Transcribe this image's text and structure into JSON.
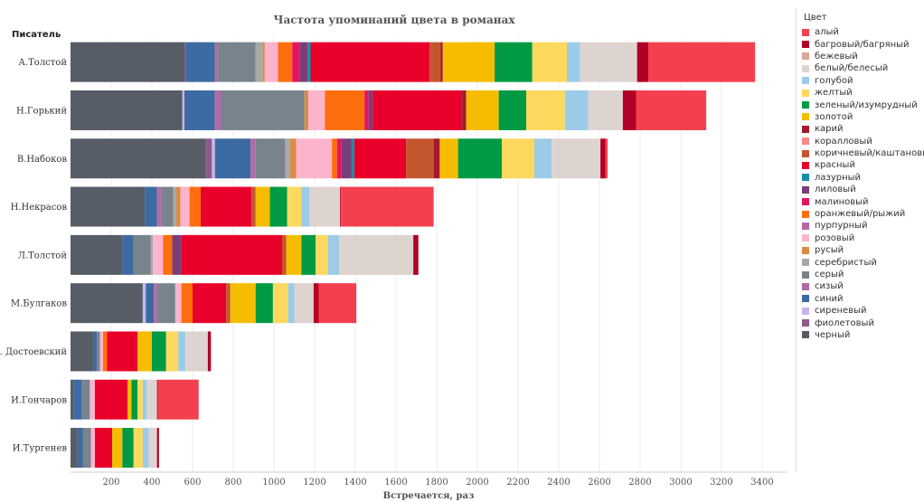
{
  "chart_data": {
    "type": "bar",
    "orientation": "horizontal",
    "stacked": true,
    "title": "Частота упоминаний цвета в романах",
    "row_header": "Писатель",
    "xlabel": "Встречается, раз",
    "xlim": [
      0,
      3520
    ],
    "xticks": [
      200,
      400,
      600,
      800,
      1000,
      1200,
      1400,
      1600,
      1800,
      2000,
      2200,
      2400,
      2600,
      2800,
      3000,
      3200,
      3400
    ],
    "legend_title": "Цвет",
    "legend_position": "right",
    "colors": [
      {
        "name": "алый",
        "color": "#f4404e"
      },
      {
        "name": "багровый/багряный",
        "color": "#b10026"
      },
      {
        "name": "бежевый",
        "color": "#d8a89a"
      },
      {
        "name": "белый/белесый",
        "color": "#ddd4d0"
      },
      {
        "name": "голубой",
        "color": "#9ccbe8"
      },
      {
        "name": "желтый",
        "color": "#fcd95e"
      },
      {
        "name": "зеленый/изумрудный",
        "color": "#009a44"
      },
      {
        "name": "золотой",
        "color": "#f6bd00"
      },
      {
        "name": "карий",
        "color": "#a4192e"
      },
      {
        "name": "коралловый",
        "color": "#f8898b"
      },
      {
        "name": "коричневый/каштановый",
        "color": "#c4562e"
      },
      {
        "name": "красный",
        "color": "#e8002b"
      },
      {
        "name": "лазурный",
        "color": "#148ea6"
      },
      {
        "name": "лиловый",
        "color": "#7b3d79"
      },
      {
        "name": "малиновый",
        "color": "#e4145e"
      },
      {
        "name": "оранжевый/рыжий",
        "color": "#fd6e0f"
      },
      {
        "name": "пурпурный",
        "color": "#b866a8"
      },
      {
        "name": "розовый",
        "color": "#fcb4cc"
      },
      {
        "name": "русый",
        "color": "#dc8a4a"
      },
      {
        "name": "серебристый",
        "color": "#a7aaa8"
      },
      {
        "name": "серый",
        "color": "#79838e"
      },
      {
        "name": "сизый",
        "color": "#b06ca6"
      },
      {
        "name": "синий",
        "color": "#3d6aa2"
      },
      {
        "name": "сиреневый",
        "color": "#c8b4ec"
      },
      {
        "name": "фиолетовый",
        "color": "#8c5a8c"
      },
      {
        "name": "черный",
        "color": "#575d66"
      }
    ],
    "rows": [
      {
        "writer": "А.Толстой",
        "segments": [
          {
            "color": "черный",
            "value": 560
          },
          {
            "color": "фиолетовый",
            "value": 5
          },
          {
            "color": "синий",
            "value": 145
          },
          {
            "color": "сизый",
            "value": 15
          },
          {
            "color": "серый",
            "value": 185
          },
          {
            "color": "серебристый",
            "value": 35
          },
          {
            "color": "русый",
            "value": 10
          },
          {
            "color": "розовый",
            "value": 65
          },
          {
            "color": "оранжевый/рыжий",
            "value": 70
          },
          {
            "color": "малиновый",
            "value": 35
          },
          {
            "color": "лиловый",
            "value": 40
          },
          {
            "color": "лазурный",
            "value": 15
          },
          {
            "color": "красный",
            "value": 585
          },
          {
            "color": "коричневый/каштановый",
            "value": 55
          },
          {
            "color": "карий",
            "value": 10
          },
          {
            "color": "золотой",
            "value": 255
          },
          {
            "color": "зеленый/изумрудный",
            "value": 185
          },
          {
            "color": "желтый",
            "value": 170
          },
          {
            "color": "голубой",
            "value": 65
          },
          {
            "color": "белый/белесый",
            "value": 280
          },
          {
            "color": "багровый/багряный",
            "value": 55
          },
          {
            "color": "алый",
            "value": 525
          }
        ]
      },
      {
        "writer": "Н.Горький",
        "segments": [
          {
            "color": "черный",
            "value": 550
          },
          {
            "color": "сиреневый",
            "value": 10
          },
          {
            "color": "синий",
            "value": 150
          },
          {
            "color": "сизый",
            "value": 30
          },
          {
            "color": "серый",
            "value": 410
          },
          {
            "color": "русый",
            "value": 20
          },
          {
            "color": "розовый",
            "value": 80
          },
          {
            "color": "оранжевый/рыжий",
            "value": 195
          },
          {
            "color": "малиновый",
            "value": 20
          },
          {
            "color": "лиловый",
            "value": 20
          },
          {
            "color": "красный",
            "value": 440
          },
          {
            "color": "карий",
            "value": 20
          },
          {
            "color": "золотой",
            "value": 160
          },
          {
            "color": "зеленый/изумрудный",
            "value": 135
          },
          {
            "color": "желтый",
            "value": 190
          },
          {
            "color": "голубой",
            "value": 115
          },
          {
            "color": "белый/белесый",
            "value": 170
          },
          {
            "color": "багровый/багряный",
            "value": 65
          },
          {
            "color": "алый",
            "value": 345
          }
        ]
      },
      {
        "writer": "В.Набоков",
        "segments": [
          {
            "color": "черный",
            "value": 665
          },
          {
            "color": "фиолетовый",
            "value": 30
          },
          {
            "color": "сиреневый",
            "value": 15
          },
          {
            "color": "синий",
            "value": 175
          },
          {
            "color": "сизый",
            "value": 25
          },
          {
            "color": "серый",
            "value": 145
          },
          {
            "color": "серебристый",
            "value": 25
          },
          {
            "color": "русый",
            "value": 30
          },
          {
            "color": "розовый",
            "value": 175
          },
          {
            "color": "оранжевый/рыжий",
            "value": 25
          },
          {
            "color": "малиновый",
            "value": 20
          },
          {
            "color": "лиловый",
            "value": 50
          },
          {
            "color": "лазурный",
            "value": 15
          },
          {
            "color": "красный",
            "value": 255
          },
          {
            "color": "коричневый/каштановый",
            "value": 135
          },
          {
            "color": "карий",
            "value": 30
          },
          {
            "color": "золотой",
            "value": 90
          },
          {
            "color": "зеленый/изумрудный",
            "value": 215
          },
          {
            "color": "желтый",
            "value": 160
          },
          {
            "color": "голубой",
            "value": 85
          },
          {
            "color": "белый/белесый",
            "value": 240
          },
          {
            "color": "багровый/багряный",
            "value": 25
          },
          {
            "color": "алый",
            "value": 10
          }
        ]
      },
      {
        "writer": "Н.Некрасов",
        "segments": [
          {
            "color": "черный",
            "value": 365
          },
          {
            "color": "синий",
            "value": 60
          },
          {
            "color": "сизый",
            "value": 20
          },
          {
            "color": "серый",
            "value": 60
          },
          {
            "color": "серебристый",
            "value": 15
          },
          {
            "color": "русый",
            "value": 20
          },
          {
            "color": "розовый",
            "value": 45
          },
          {
            "color": "оранжевый/рыжий",
            "value": 55
          },
          {
            "color": "красный",
            "value": 250
          },
          {
            "color": "коричневый/каштановый",
            "value": 20
          },
          {
            "color": "золотой",
            "value": 70
          },
          {
            "color": "зеленый/изумрудный",
            "value": 85
          },
          {
            "color": "желтый",
            "value": 70
          },
          {
            "color": "голубой",
            "value": 40
          },
          {
            "color": "белый/белесый",
            "value": 150
          },
          {
            "color": "багровый/багряный",
            "value": 5
          },
          {
            "color": "алый",
            "value": 455
          }
        ]
      },
      {
        "writer": "Л.Толстой",
        "segments": [
          {
            "color": "черный",
            "value": 255
          },
          {
            "color": "синий",
            "value": 55
          },
          {
            "color": "серый",
            "value": 85
          },
          {
            "color": "серебристый",
            "value": 10
          },
          {
            "color": "розовый",
            "value": 50
          },
          {
            "color": "оранжевый/рыжий",
            "value": 45
          },
          {
            "color": "лиловый",
            "value": 45
          },
          {
            "color": "красный",
            "value": 495
          },
          {
            "color": "коричневый/каштановый",
            "value": 20
          },
          {
            "color": "золотой",
            "value": 75
          },
          {
            "color": "зеленый/изумрудный",
            "value": 70
          },
          {
            "color": "желтый",
            "value": 60
          },
          {
            "color": "голубой",
            "value": 55
          },
          {
            "color": "белый/белесый",
            "value": 365
          },
          {
            "color": "багровый/багряный",
            "value": 25
          }
        ]
      },
      {
        "writer": "М.Булгаков",
        "segments": [
          {
            "color": "черный",
            "value": 355
          },
          {
            "color": "сиреневый",
            "value": 15
          },
          {
            "color": "синий",
            "value": 40
          },
          {
            "color": "сизый",
            "value": 15
          },
          {
            "color": "серый",
            "value": 90
          },
          {
            "color": "розовый",
            "value": 30
          },
          {
            "color": "оранжевый/рыжий",
            "value": 55
          },
          {
            "color": "красный",
            "value": 165
          },
          {
            "color": "коричневый/каштановый",
            "value": 20
          },
          {
            "color": "золотой",
            "value": 125
          },
          {
            "color": "зеленый/изумрудный",
            "value": 85
          },
          {
            "color": "желтый",
            "value": 75
          },
          {
            "color": "голубой",
            "value": 30
          },
          {
            "color": "белый/белесый",
            "value": 95
          },
          {
            "color": "багровый/багряный",
            "value": 25
          },
          {
            "color": "алый",
            "value": 185
          }
        ]
      },
      {
        "writer": "Ф. Достоевский",
        "segments": [
          {
            "color": "черный",
            "value": 115
          },
          {
            "color": "синий",
            "value": 15
          },
          {
            "color": "серый",
            "value": 15
          },
          {
            "color": "розовый",
            "value": 15
          },
          {
            "color": "оранжевый/рыжий",
            "value": 20
          },
          {
            "color": "красный",
            "value": 150
          },
          {
            "color": "золотой",
            "value": 70
          },
          {
            "color": "зеленый/изумрудный",
            "value": 70
          },
          {
            "color": "желтый",
            "value": 60
          },
          {
            "color": "голубой",
            "value": 35
          },
          {
            "color": "белый/белесый",
            "value": 110
          },
          {
            "color": "багровый/багряный",
            "value": 15
          }
        ]
      },
      {
        "writer": "И.Гончаров",
        "segments": [
          {
            "color": "черный",
            "value": 15
          },
          {
            "color": "синий",
            "value": 40
          },
          {
            "color": "серый",
            "value": 40
          },
          {
            "color": "розовый",
            "value": 25
          },
          {
            "color": "красный",
            "value": 160
          },
          {
            "color": "золотой",
            "value": 20
          },
          {
            "color": "зеленый/изумрудный",
            "value": 30
          },
          {
            "color": "желтый",
            "value": 25
          },
          {
            "color": "голубой",
            "value": 20
          },
          {
            "color": "белый/белесый",
            "value": 50
          },
          {
            "color": "багровый/багряный",
            "value": 5
          },
          {
            "color": "алый",
            "value": 200
          }
        ]
      },
      {
        "writer": "И.Тургенев",
        "segments": [
          {
            "color": "черный",
            "value": 35
          },
          {
            "color": "синий",
            "value": 25
          },
          {
            "color": "серый",
            "value": 40
          },
          {
            "color": "розовый",
            "value": 20
          },
          {
            "color": "красный",
            "value": 85
          },
          {
            "color": "золотой",
            "value": 50
          },
          {
            "color": "зеленый/изумрудный",
            "value": 55
          },
          {
            "color": "желтый",
            "value": 45
          },
          {
            "color": "голубой",
            "value": 30
          },
          {
            "color": "белый/белесый",
            "value": 40
          },
          {
            "color": "багровый/багряный",
            "value": 10
          }
        ]
      }
    ]
  }
}
